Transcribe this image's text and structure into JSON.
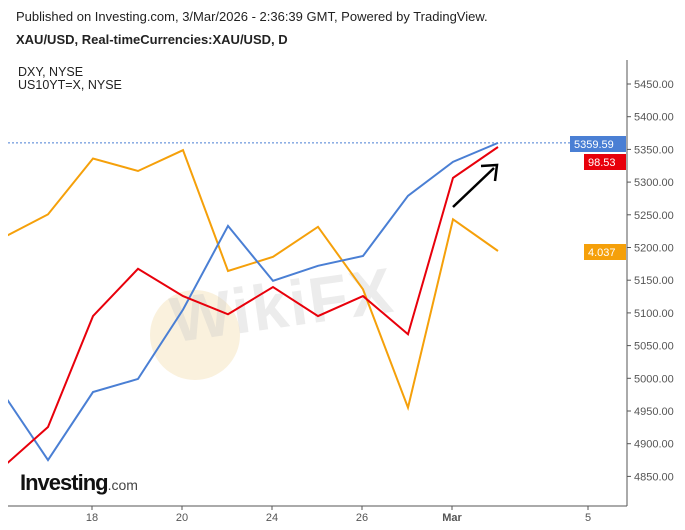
{
  "header": {
    "published": "Published on Investing.com, 3/Mar/2026 - 2:36:39 GMT, Powered by TradingView.",
    "symbol": "XAU/USD, Real-timeCurrencies:XAU/USD, D"
  },
  "legend": [
    "DXY, NYSE",
    "US10YT=X, NYSE"
  ],
  "logo": {
    "main": "Investing",
    "suffix": ".com"
  },
  "watermark": "WikiFX",
  "chart_data": {
    "type": "line",
    "x": [
      "Feb 16",
      "Feb 17",
      "Feb 18",
      "Feb 19",
      "Feb 20",
      "Feb 23",
      "Feb 24",
      "Feb 25",
      "Feb 26",
      "Feb 27",
      "Mar 2",
      "Mar 3"
    ],
    "x_tick_labels": [
      "18",
      "20",
      "24",
      "26",
      "Mar",
      "5"
    ],
    "x_tick_dates": [
      "Feb 18",
      "Feb 20",
      "Feb 24",
      "Feb 26",
      "Mar 2",
      "Mar 5"
    ],
    "y_ticks": [
      4850,
      4900,
      4950,
      5000,
      5050,
      5100,
      5150,
      5200,
      5250,
      5300,
      5350,
      5400,
      5450
    ],
    "y_tick_labels": [
      "4850.00",
      "4900.00",
      "4950.00",
      "5000.00",
      "5050.00",
      "5100.00",
      "5150.00",
      "5200.00",
      "5250.00",
      "5300.00",
      "5350.00",
      "5400.00",
      "5450.00"
    ],
    "ylim": [
      4810,
      5500
    ],
    "grid": false,
    "series": [
      {
        "name": "XAU/USD",
        "color": "#4a7fd4",
        "last_label": "5359.59",
        "values": [
          4977,
          4875,
          4979,
          4999,
          5105,
          5233,
          5149,
          5172,
          5187,
          5279,
          5331,
          5360
        ]
      },
      {
        "name": "DXY, NYSE",
        "color": "#e8000b",
        "last_label": "98.53",
        "values": [
          96.77,
          96.99,
          97.6,
          97.86,
          97.71,
          97.61,
          97.76,
          97.6,
          97.71,
          97.5,
          98.36,
          98.53
        ]
      },
      {
        "name": "US10YT=X, NYSE",
        "color": "#f5a00a",
        "last_label": "4.037",
        "values": [
          4.053,
          4.081,
          4.148,
          4.133,
          4.158,
          4.013,
          4.03,
          4.066,
          3.991,
          3.849,
          4.075,
          4.037
        ]
      }
    ],
    "annotation": "arrow-up-right"
  }
}
